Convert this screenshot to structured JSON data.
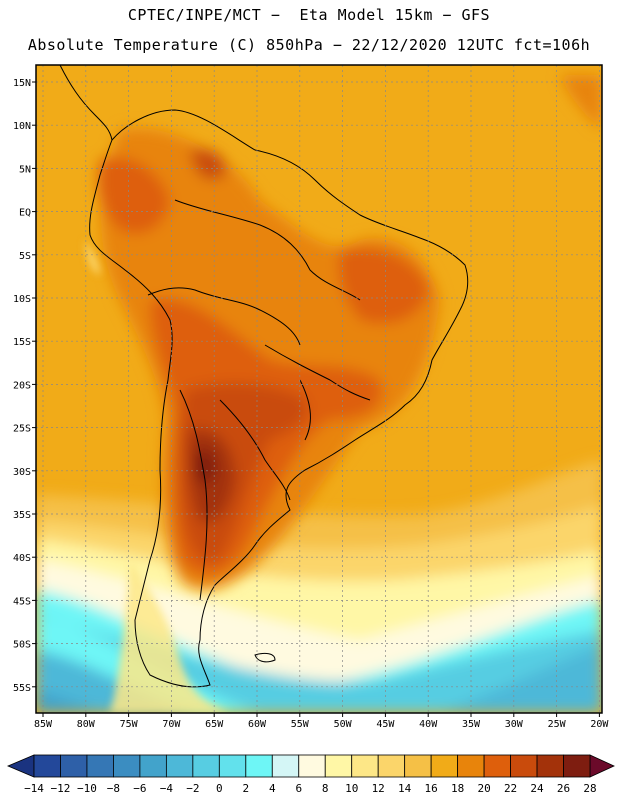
{
  "header": {
    "title_line1": "CPTEC/INPE/MCT −  Eta Model 15km − GFS",
    "title_line2": "Absolute Temperature (C) 850hPa − 22/12/2020 12UTC fct=106h"
  },
  "map": {
    "lat_labels": [
      "15N",
      "10N",
      "5N",
      "EQ",
      "5S",
      "10S",
      "15S",
      "20S",
      "25S",
      "30S",
      "35S",
      "40S",
      "45S",
      "50S",
      "55S"
    ],
    "lon_labels": [
      "85W",
      "80W",
      "75W",
      "70W",
      "65W",
      "60W",
      "55W",
      "50W",
      "45W",
      "40W",
      "35W",
      "30W",
      "25W",
      "20W"
    ]
  },
  "colorbar": {
    "labels": [
      "−14",
      "−12",
      "−10",
      "−8",
      "−6",
      "−4",
      "−2",
      "0",
      "2",
      "4",
      "6",
      "8",
      "10",
      "12",
      "14",
      "16",
      "18",
      "20",
      "22",
      "24",
      "26",
      "28"
    ],
    "colors": [
      "#23489a",
      "#2e60a8",
      "#3577b5",
      "#3b8dc1",
      "#42a3cb",
      "#4db8d8",
      "#57cde2",
      "#62e1ec",
      "#6ef6f6",
      "#d4f6f6",
      "#fffae0",
      "#fff7a6",
      "#fde787",
      "#fbd56a",
      "#f5c046",
      "#f1ab18",
      "#e8840b",
      "#de5f0c",
      "#c94b0c",
      "#a3320a",
      "#7e1d10"
    ],
    "low_extend_color": "#1a3380",
    "high_extend_color": "#6b0a2a"
  }
}
